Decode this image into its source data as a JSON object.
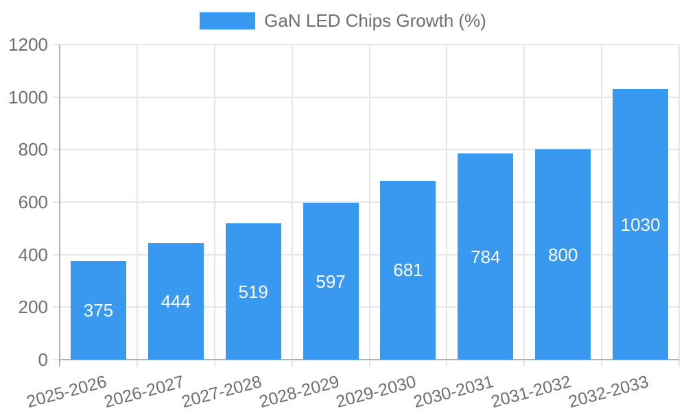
{
  "chart_data": {
    "type": "bar",
    "title": "GaN LED Chips Growth (%)",
    "legend": {
      "position": "top",
      "label": "GaN LED Chips Growth (%)"
    },
    "categories": [
      "2025-2026",
      "2026-2027",
      "2027-2028",
      "2028-2029",
      "2029-2030",
      "2030-2031",
      "2031-2032",
      "2032-2033"
    ],
    "values": [
      375,
      444,
      519,
      597,
      681,
      784,
      800,
      1030
    ],
    "xlabel": "",
    "ylabel": "",
    "ylim": [
      0,
      1200
    ],
    "yticks": [
      0,
      200,
      400,
      600,
      800,
      1000,
      1200
    ],
    "grid": true,
    "x_label_rotation_deg": 15,
    "colors": {
      "bar": "#3998F0",
      "grid": "#e6e6e6",
      "axis": "#b0b0b0",
      "text": "#6e6e6e",
      "value_text": "#ffffff"
    }
  }
}
